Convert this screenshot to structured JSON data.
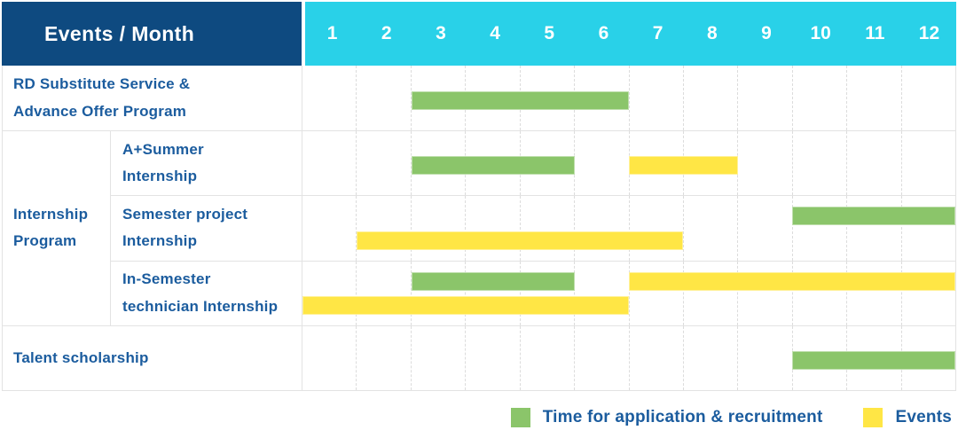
{
  "header": {
    "title": "Events / Month",
    "months": [
      "1",
      "2",
      "3",
      "4",
      "5",
      "6",
      "7",
      "8",
      "9",
      "10",
      "11",
      "12"
    ]
  },
  "colors": {
    "header_bg": "#0e4a80",
    "month_strip_bg": "#29d1e8",
    "green": "#8bc56a",
    "yellow": "#ffe645",
    "label_text": "#1b5c9e",
    "header_text": "#ffffff"
  },
  "legend": {
    "items": [
      {
        "key": "application",
        "label": "Time for application & recruitment",
        "color_key": "green"
      },
      {
        "key": "events",
        "label": "Events",
        "color_key": "yellow"
      }
    ]
  },
  "chart_data": {
    "type": "bar",
    "subtype": "gantt-schedule",
    "title": "Events / Month",
    "x_axis": {
      "label": "Month",
      "ticks": [
        1,
        2,
        3,
        4,
        5,
        6,
        7,
        8,
        9,
        10,
        11,
        12
      ],
      "range": [
        1,
        12
      ]
    },
    "legend_entries": [
      "Time for application & recruitment",
      "Events"
    ],
    "rows": [
      {
        "group": "",
        "label": "RD Substitute Service & Advance Offer Program",
        "label_lines": [
          "RD Substitute Service &",
          "Advance Offer Program"
        ],
        "lanes": 1,
        "bars": [
          {
            "series": "Time for application & recruitment",
            "color_key": "green",
            "start_month": 3,
            "end_month": 6,
            "lane": 0
          }
        ]
      },
      {
        "group": "Internship Program",
        "group_lines": [
          "Internship",
          "Program"
        ],
        "label": "A+Summer Internship",
        "label_lines": [
          "A+Summer",
          "Internship"
        ],
        "lanes": 1,
        "bars": [
          {
            "series": "Time for application & recruitment",
            "color_key": "green",
            "start_month": 3,
            "end_month": 5,
            "lane": 0
          },
          {
            "series": "Events",
            "color_key": "yellow",
            "start_month": 7,
            "end_month": 8,
            "lane": 0
          }
        ]
      },
      {
        "group": "Internship Program",
        "label": "Semester project Internship",
        "label_lines": [
          "Semester project",
          "Internship"
        ],
        "lanes": 2,
        "bars": [
          {
            "series": "Time for application & recruitment",
            "color_key": "green",
            "start_month": 10,
            "end_month": 12,
            "lane": 0
          },
          {
            "series": "Events",
            "color_key": "yellow",
            "start_month": 2,
            "end_month": 7,
            "lane": 1
          }
        ]
      },
      {
        "group": "Internship Program",
        "label": "In-Semester technician Internship",
        "label_lines": [
          "In-Semester",
          "technician Internship"
        ],
        "lanes": 2,
        "bars": [
          {
            "series": "Time for application & recruitment",
            "color_key": "green",
            "start_month": 3,
            "end_month": 5,
            "lane": 0
          },
          {
            "series": "Events",
            "color_key": "yellow",
            "start_month": 7,
            "end_month": 12,
            "lane": 0
          },
          {
            "series": "Events",
            "color_key": "yellow",
            "start_month": 1,
            "end_month": 6,
            "lane": 1
          }
        ]
      },
      {
        "group": "",
        "label": "Talent scholarship",
        "label_lines": [
          "Talent scholarship"
        ],
        "lanes": 1,
        "bars": [
          {
            "series": "Time for application & recruitment",
            "color_key": "green",
            "start_month": 10,
            "end_month": 12,
            "lane": 0
          }
        ]
      }
    ]
  }
}
